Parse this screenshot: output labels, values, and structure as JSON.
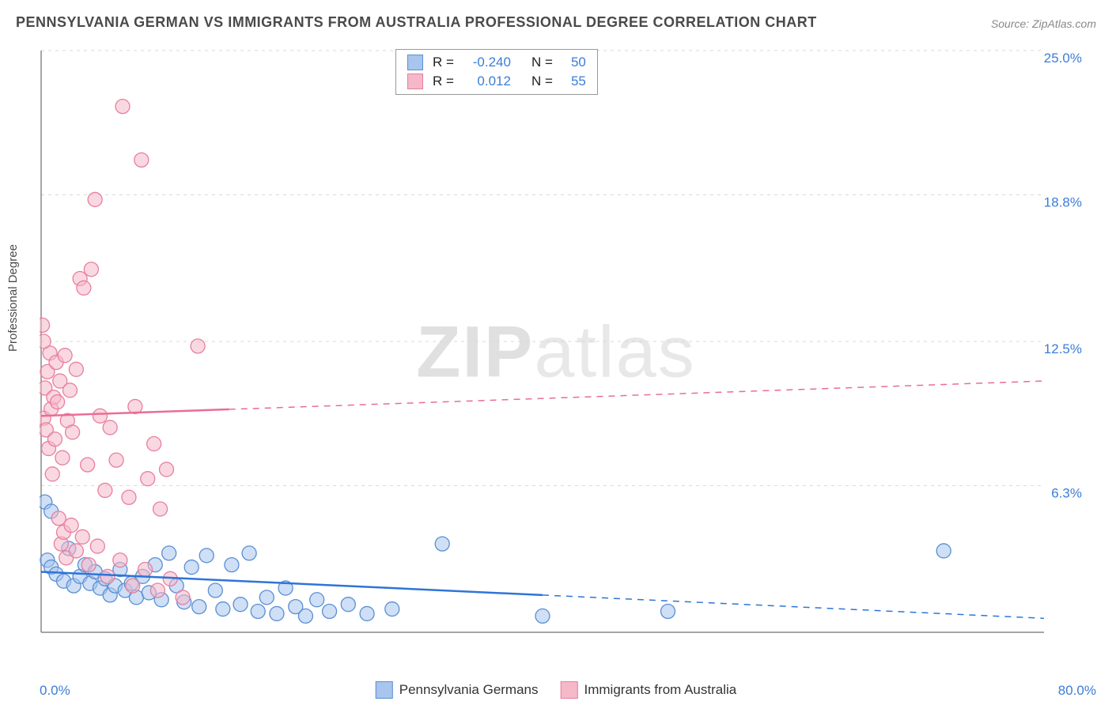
{
  "title": "PENNSYLVANIA GERMAN VS IMMIGRANTS FROM AUSTRALIA PROFESSIONAL DEGREE CORRELATION CHART",
  "source": "Source: ZipAtlas.com",
  "ylabel": "Professional Degree",
  "watermark_zip": "ZIP",
  "watermark_atlas": "atlas",
  "chart": {
    "type": "scatter",
    "xlim": [
      0,
      80
    ],
    "ylim": [
      0,
      25
    ],
    "x_axis_labels": {
      "min": "0.0%",
      "max": "80.0%"
    },
    "y_ticks": [
      {
        "value": 6.3,
        "label": "6.3%"
      },
      {
        "value": 12.5,
        "label": "12.5%"
      },
      {
        "value": 18.8,
        "label": "18.8%"
      },
      {
        "value": 25.0,
        "label": "25.0%"
      }
    ],
    "grid_color": "#d8d8d8",
    "axis_color": "#888888",
    "background_color": "#ffffff",
    "marker_radius": 9,
    "marker_opacity": 0.55,
    "line_width": 2.5,
    "series": [
      {
        "name": "Pennsylvania Germans",
        "fill": "#a8c5ed",
        "stroke": "#5a8fd4",
        "line_color": "#2e75d6",
        "R": "-0.240",
        "N": "50",
        "trend": {
          "x1": 0,
          "y1": 2.6,
          "x2": 80,
          "y2": 0.6,
          "solid_until": 40
        },
        "points": [
          [
            0.3,
            5.6
          ],
          [
            0.5,
            3.1
          ],
          [
            0.8,
            2.8
          ],
          [
            1.2,
            2.5
          ],
          [
            1.8,
            2.2
          ],
          [
            2.2,
            3.6
          ],
          [
            2.6,
            2.0
          ],
          [
            3.1,
            2.4
          ],
          [
            3.5,
            2.9
          ],
          [
            3.9,
            2.1
          ],
          [
            4.3,
            2.6
          ],
          [
            4.7,
            1.9
          ],
          [
            5.1,
            2.3
          ],
          [
            5.5,
            1.6
          ],
          [
            5.9,
            2.0
          ],
          [
            6.3,
            2.7
          ],
          [
            6.7,
            1.8
          ],
          [
            7.2,
            2.1
          ],
          [
            7.6,
            1.5
          ],
          [
            8.1,
            2.4
          ],
          [
            8.6,
            1.7
          ],
          [
            9.1,
            2.9
          ],
          [
            9.6,
            1.4
          ],
          [
            10.2,
            3.4
          ],
          [
            10.8,
            2.0
          ],
          [
            11.4,
            1.3
          ],
          [
            12.0,
            2.8
          ],
          [
            12.6,
            1.1
          ],
          [
            13.2,
            3.3
          ],
          [
            13.9,
            1.8
          ],
          [
            14.5,
            1.0
          ],
          [
            15.2,
            2.9
          ],
          [
            15.9,
            1.2
          ],
          [
            16.6,
            3.4
          ],
          [
            17.3,
            0.9
          ],
          [
            18.0,
            1.5
          ],
          [
            18.8,
            0.8
          ],
          [
            19.5,
            1.9
          ],
          [
            20.3,
            1.1
          ],
          [
            21.1,
            0.7
          ],
          [
            22.0,
            1.4
          ],
          [
            23.0,
            0.9
          ],
          [
            24.5,
            1.2
          ],
          [
            26.0,
            0.8
          ],
          [
            28.0,
            1.0
          ],
          [
            32.0,
            3.8
          ],
          [
            40.0,
            0.7
          ],
          [
            50.0,
            0.9
          ],
          [
            72.0,
            3.5
          ],
          [
            0.8,
            5.2
          ]
        ]
      },
      {
        "name": "Immigrants from Australia",
        "fill": "#f5b8c8",
        "stroke": "#e77fa0",
        "line_color": "#ea6d94",
        "R": "0.012",
        "N": "55",
        "trend": {
          "x1": 0,
          "y1": 9.3,
          "x2": 80,
          "y2": 10.8,
          "solid_until": 15
        },
        "points": [
          [
            0.2,
            9.2
          ],
          [
            0.3,
            10.5
          ],
          [
            0.4,
            8.7
          ],
          [
            0.5,
            11.2
          ],
          [
            0.6,
            7.9
          ],
          [
            0.7,
            12.0
          ],
          [
            0.8,
            9.6
          ],
          [
            0.9,
            6.8
          ],
          [
            1.0,
            10.1
          ],
          [
            1.1,
            8.3
          ],
          [
            1.2,
            11.6
          ],
          [
            1.3,
            9.9
          ],
          [
            1.5,
            10.8
          ],
          [
            1.7,
            7.5
          ],
          [
            1.9,
            11.9
          ],
          [
            2.1,
            9.1
          ],
          [
            2.3,
            10.4
          ],
          [
            2.5,
            8.6
          ],
          [
            2.8,
            11.3
          ],
          [
            3.1,
            15.2
          ],
          [
            3.4,
            14.8
          ],
          [
            3.7,
            7.2
          ],
          [
            4.0,
            15.6
          ],
          [
            4.3,
            18.6
          ],
          [
            4.7,
            9.3
          ],
          [
            5.1,
            6.1
          ],
          [
            5.5,
            8.8
          ],
          [
            6.0,
            7.4
          ],
          [
            6.5,
            22.6
          ],
          [
            7.0,
            5.8
          ],
          [
            7.5,
            9.7
          ],
          [
            8.0,
            20.3
          ],
          [
            8.5,
            6.6
          ],
          [
            9.0,
            8.1
          ],
          [
            9.5,
            5.3
          ],
          [
            10.0,
            7.0
          ],
          [
            12.5,
            12.3
          ],
          [
            1.4,
            4.9
          ],
          [
            1.6,
            3.8
          ],
          [
            1.8,
            4.3
          ],
          [
            2.0,
            3.2
          ],
          [
            2.4,
            4.6
          ],
          [
            2.8,
            3.5
          ],
          [
            3.3,
            4.1
          ],
          [
            3.8,
            2.9
          ],
          [
            4.5,
            3.7
          ],
          [
            5.3,
            2.4
          ],
          [
            6.3,
            3.1
          ],
          [
            7.3,
            2.0
          ],
          [
            8.3,
            2.7
          ],
          [
            9.3,
            1.8
          ],
          [
            10.3,
            2.3
          ],
          [
            11.3,
            1.5
          ],
          [
            0.1,
            13.2
          ],
          [
            0.2,
            12.5
          ]
        ]
      }
    ]
  },
  "stats_box": {
    "rows": [
      {
        "swatch_fill": "#a8c5ed",
        "swatch_stroke": "#5a8fd4",
        "r_label": "R =",
        "r_val": "-0.240",
        "n_label": "N =",
        "n_val": "50"
      },
      {
        "swatch_fill": "#f5b8c8",
        "swatch_stroke": "#e77fa0",
        "r_label": "R =",
        "r_val": "0.012",
        "n_label": "N =",
        "n_val": "55"
      }
    ]
  },
  "bottom_legend": [
    {
      "swatch_fill": "#a8c5ed",
      "swatch_stroke": "#5a8fd4",
      "label": "Pennsylvania Germans"
    },
    {
      "swatch_fill": "#f5b8c8",
      "swatch_stroke": "#e77fa0",
      "label": "Immigrants from Australia"
    }
  ]
}
